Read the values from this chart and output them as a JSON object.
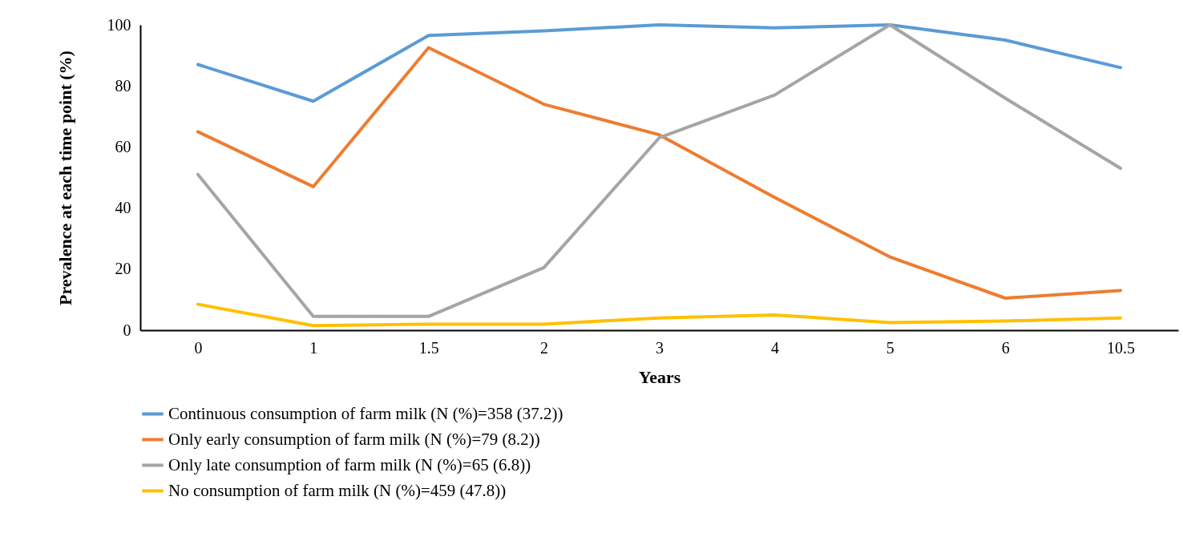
{
  "chart_data": {
    "type": "line",
    "xlabel": "Years",
    "ylabel": "Prevalence at each time point (%)",
    "categories": [
      "0",
      "1",
      "1.5",
      "2",
      "3",
      "4",
      "5",
      "6",
      "10.5"
    ],
    "series": [
      {
        "name": "Continuous consumption of farm milk (N (%)=358 (37.2))",
        "color": "#5b9bd5",
        "values": [
          87,
          75,
          96.5,
          98,
          100,
          99,
          100,
          95,
          86
        ]
      },
      {
        "name": "Only early consumption of farm milk (N (%)=79 (8.2))",
        "color": "#ed7d31",
        "values": [
          65,
          47,
          92.5,
          74,
          64,
          43.5,
          24,
          10.5,
          13
        ]
      },
      {
        "name": "Only late consumption of farm milk (N (%)=65 (6.8))",
        "color": "#a5a5a5",
        "values": [
          51,
          4.5,
          4.5,
          20.5,
          63,
          77,
          100,
          76,
          53
        ]
      },
      {
        "name": "No consumption of farm milk (N (%)=459 (47.8))",
        "color": "#ffc000",
        "values": [
          8.5,
          1.5,
          2,
          2,
          4,
          5,
          2.5,
          3,
          4
        ]
      }
    ],
    "ylim": [
      0,
      100
    ],
    "yticks": [
      0,
      20,
      40,
      60,
      80,
      100
    ],
    "legend": "bottom"
  }
}
